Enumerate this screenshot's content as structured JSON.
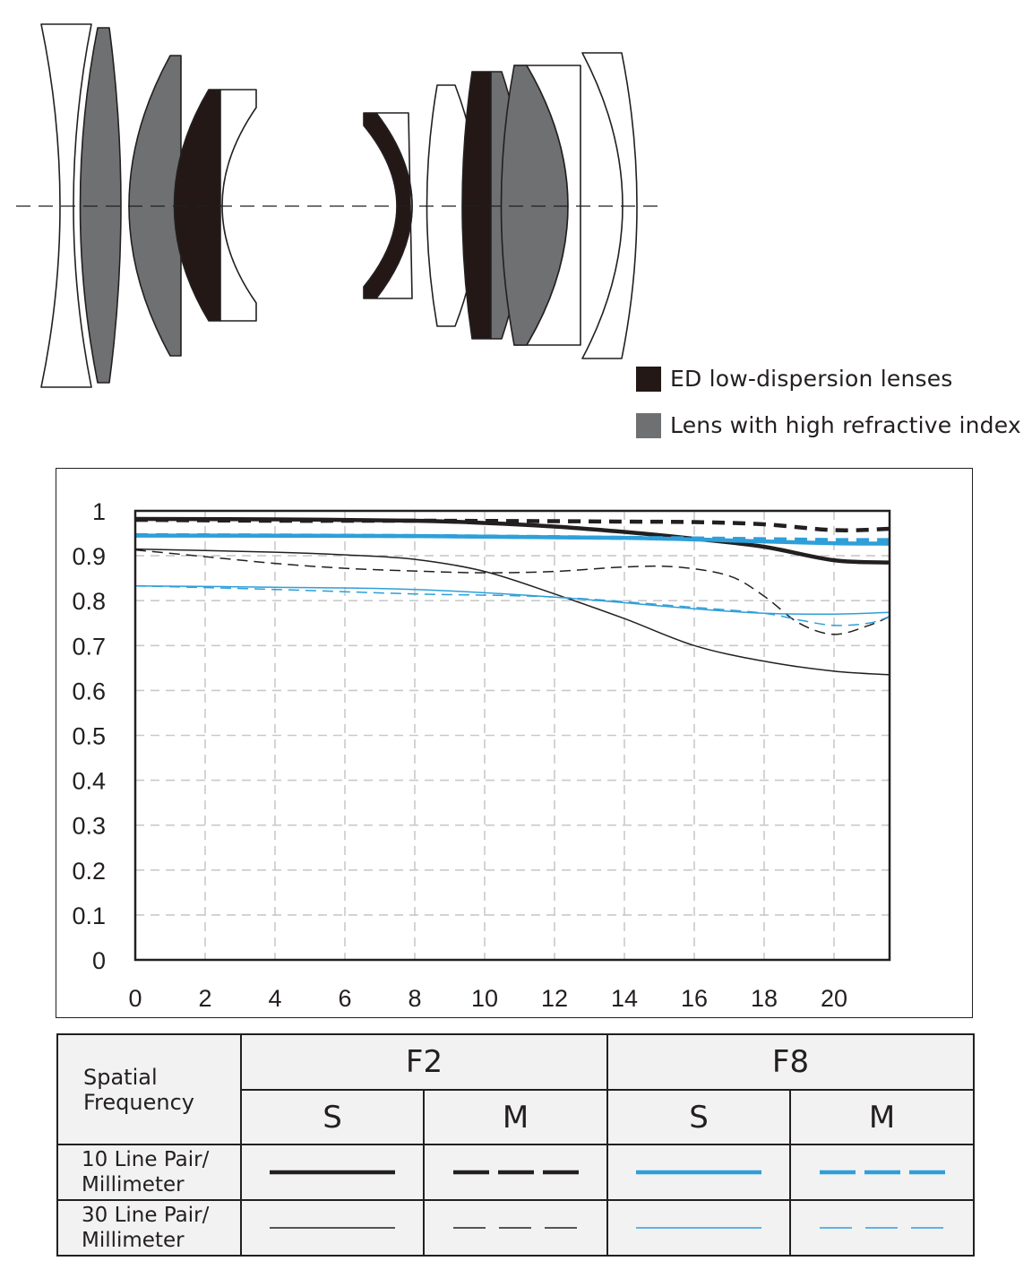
{
  "legend": {
    "items": [
      {
        "label": "ED low-dispersion lenses",
        "color": "#231815"
      },
      {
        "label": "Lens with high refractive index",
        "color": "#6f7072"
      }
    ]
  },
  "chart_data": {
    "type": "line",
    "xlim": [
      0,
      21.6
    ],
    "ylim": [
      0,
      1
    ],
    "x_ticks": [
      "0",
      "2",
      "4",
      "6",
      "8",
      "10",
      "12",
      "14",
      "16",
      "18",
      "20"
    ],
    "y_ticks": [
      "0",
      "0.1",
      "0.2",
      "0.3",
      "0.4",
      "0.5",
      "0.6",
      "0.7",
      "0.8",
      "0.9",
      "1"
    ],
    "grid": true,
    "series": [
      {
        "aperture": "F2",
        "type": "S",
        "frequency": "10",
        "color": "#231f20",
        "style": "solid",
        "weight": "thick",
        "points": [
          [
            0,
            0.982
          ],
          [
            4,
            0.981
          ],
          [
            8,
            0.978
          ],
          [
            10,
            0.973
          ],
          [
            12,
            0.965
          ],
          [
            14,
            0.953
          ],
          [
            16,
            0.938
          ],
          [
            18,
            0.92
          ],
          [
            20,
            0.89
          ],
          [
            21.6,
            0.885
          ]
        ]
      },
      {
        "aperture": "F2",
        "type": "M",
        "frequency": "10",
        "color": "#231f20",
        "style": "dashed",
        "weight": "thick",
        "points": [
          [
            0,
            0.98
          ],
          [
            4,
            0.978
          ],
          [
            8,
            0.978
          ],
          [
            12,
            0.977
          ],
          [
            14,
            0.976
          ],
          [
            16,
            0.975
          ],
          [
            18,
            0.97
          ],
          [
            20,
            0.957
          ],
          [
            21.6,
            0.96
          ]
        ]
      },
      {
        "aperture": "F2",
        "type": "S",
        "frequency": "30",
        "color": "#231f20",
        "style": "solid",
        "weight": "thin",
        "points": [
          [
            0,
            0.915
          ],
          [
            4,
            0.908
          ],
          [
            6,
            0.902
          ],
          [
            8,
            0.892
          ],
          [
            10,
            0.865
          ],
          [
            12,
            0.815
          ],
          [
            14,
            0.76
          ],
          [
            16,
            0.7
          ],
          [
            18,
            0.665
          ],
          [
            20,
            0.643
          ],
          [
            21.6,
            0.635
          ]
        ]
      },
      {
        "aperture": "F2",
        "type": "M",
        "frequency": "30",
        "color": "#231f20",
        "style": "dashed",
        "weight": "thin",
        "points": [
          [
            0,
            0.913
          ],
          [
            2,
            0.898
          ],
          [
            4,
            0.883
          ],
          [
            6,
            0.872
          ],
          [
            8,
            0.866
          ],
          [
            10,
            0.862
          ],
          [
            12,
            0.865
          ],
          [
            14,
            0.875
          ],
          [
            15.5,
            0.875
          ],
          [
            17,
            0.855
          ],
          [
            18,
            0.81
          ],
          [
            19,
            0.75
          ],
          [
            20,
            0.725
          ],
          [
            21,
            0.745
          ],
          [
            21.6,
            0.765
          ]
        ]
      },
      {
        "aperture": "F8",
        "type": "S",
        "frequency": "10",
        "color": "#2e9fd9",
        "style": "solid",
        "weight": "thick",
        "points": [
          [
            0,
            0.945
          ],
          [
            8,
            0.944
          ],
          [
            14,
            0.94
          ],
          [
            18,
            0.932
          ],
          [
            20,
            0.928
          ],
          [
            21.6,
            0.927
          ]
        ]
      },
      {
        "aperture": "F8",
        "type": "M",
        "frequency": "10",
        "color": "#2e9fd9",
        "style": "dashed",
        "weight": "thick",
        "points": [
          [
            0,
            0.946
          ],
          [
            8,
            0.944
          ],
          [
            14,
            0.94
          ],
          [
            18,
            0.937
          ],
          [
            20,
            0.935
          ],
          [
            21.6,
            0.935
          ]
        ]
      },
      {
        "aperture": "F8",
        "type": "S",
        "frequency": "30",
        "color": "#2e9fd9",
        "style": "solid",
        "weight": "thin",
        "points": [
          [
            0,
            0.833
          ],
          [
            4,
            0.83
          ],
          [
            8,
            0.825
          ],
          [
            12,
            0.808
          ],
          [
            16,
            0.782
          ],
          [
            18,
            0.772
          ],
          [
            20,
            0.77
          ],
          [
            21.6,
            0.774
          ]
        ]
      },
      {
        "aperture": "F8",
        "type": "M",
        "frequency": "30",
        "color": "#2e9fd9",
        "style": "dashed",
        "weight": "thin",
        "points": [
          [
            0,
            0.833
          ],
          [
            4,
            0.825
          ],
          [
            8,
            0.815
          ],
          [
            12,
            0.808
          ],
          [
            16,
            0.785
          ],
          [
            18,
            0.772
          ],
          [
            19,
            0.757
          ],
          [
            20,
            0.745
          ],
          [
            21,
            0.75
          ],
          [
            21.6,
            0.765
          ]
        ]
      }
    ]
  },
  "key_table": {
    "header_label": "Spatial Frequency",
    "apertures": [
      "F2",
      "F8"
    ],
    "types": [
      "S",
      "M",
      "S",
      "M"
    ],
    "rows": [
      {
        "label": "10 Line Pair/ Millimeter"
      },
      {
        "label": "30 Line Pair/ Millimeter"
      }
    ]
  }
}
